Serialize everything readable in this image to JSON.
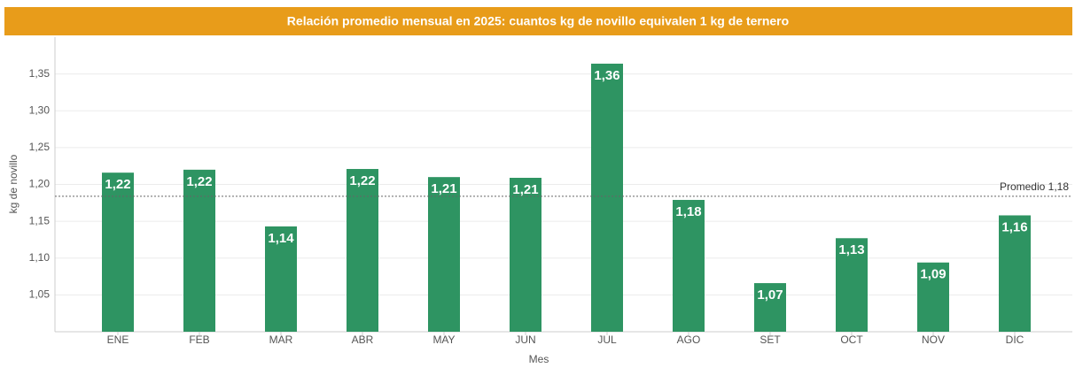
{
  "chart_data": {
    "type": "bar",
    "title": "Relación promedio mensual en 2025: cuantos kg de novillo equivalen 1 kg de ternero",
    "x_label": "Mes",
    "y_label": "kg de novillo",
    "categories": [
      "ENE",
      "FEB",
      "MAR",
      "ABR",
      "MAY",
      "JUN",
      "JUL",
      "AGO",
      "SET",
      "OCT",
      "NOV",
      "DIC"
    ],
    "values": [
      1.216,
      1.22,
      1.143,
      1.221,
      1.21,
      1.209,
      1.364,
      1.179,
      1.066,
      1.127,
      1.094,
      1.158
    ],
    "value_labels": [
      "1,22",
      "1,22",
      "1,14",
      "1,22",
      "1,21",
      "1,21",
      "1,36",
      "1,18",
      "1,07",
      "1,13",
      "1,09",
      "1,16"
    ],
    "color": "#2e9462",
    "ylim": [
      1.0,
      1.4
    ],
    "yticks": [
      {
        "value": 1.05,
        "label": "1,05"
      },
      {
        "value": 1.1,
        "label": "1,10"
      },
      {
        "value": 1.15,
        "label": "1,15"
      },
      {
        "value": 1.2,
        "label": "1,20"
      },
      {
        "value": 1.25,
        "label": "1,25"
      },
      {
        "value": 1.3,
        "label": "1,30"
      },
      {
        "value": 1.35,
        "label": "1,35"
      }
    ],
    "grid": true,
    "reference_line": {
      "value": 1.184,
      "label": "Promedio 1,18"
    }
  }
}
